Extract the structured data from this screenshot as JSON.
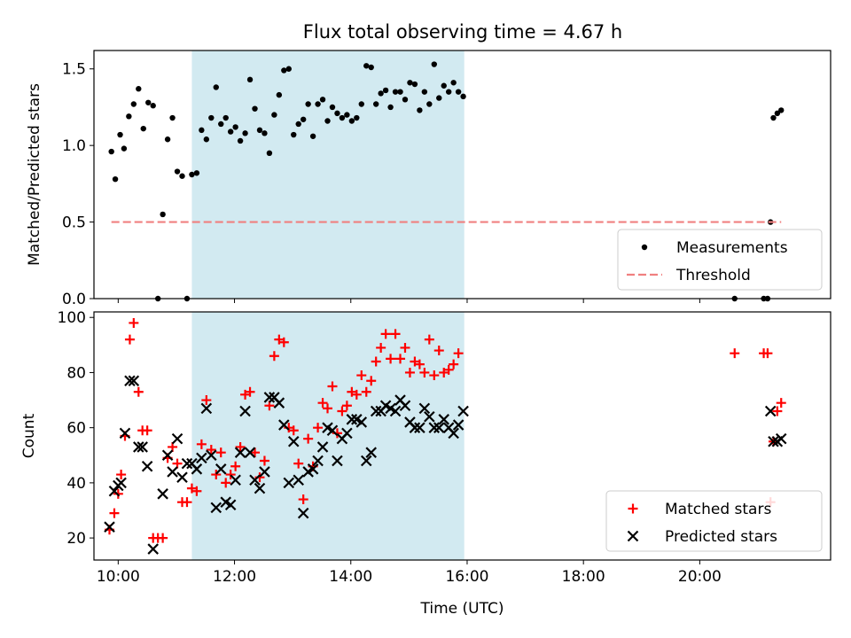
{
  "chart_data": [
    {
      "type": "scatter",
      "title": "Flux total observing time = 4.67 h",
      "ylabel": "Matched/Predicted stars",
      "xlabel": "",
      "xlim": [
        "09:35",
        "22:15"
      ],
      "ylim": [
        0,
        1.62
      ],
      "yticks": [
        "0.0",
        "0.5",
        "1.0",
        "1.5"
      ],
      "legend": "lower-right",
      "shaded_interval": [
        "11:16",
        "15:57"
      ],
      "shade_color": "#add8e6",
      "series": [
        {
          "name": "Measurements",
          "marker": "dot",
          "color": "#000000",
          "points": [
            [
              "09:53",
              0.96
            ],
            [
              "09:57",
              0.78
            ],
            [
              "10:02",
              1.07
            ],
            [
              "10:06",
              0.98
            ],
            [
              "10:11",
              1.19
            ],
            [
              "10:16",
              1.27
            ],
            [
              "10:21",
              1.37
            ],
            [
              "10:26",
              1.11
            ],
            [
              "10:31",
              1.28
            ],
            [
              "10:36",
              1.26
            ],
            [
              "10:41",
              0.0
            ],
            [
              "10:46",
              0.55
            ],
            [
              "10:51",
              1.04
            ],
            [
              "10:56",
              1.18
            ],
            [
              "11:01",
              0.83
            ],
            [
              "11:06",
              0.8
            ],
            [
              "11:11",
              0.0
            ],
            [
              "11:16",
              0.81
            ],
            [
              "11:21",
              0.82
            ],
            [
              "11:26",
              1.1
            ],
            [
              "11:31",
              1.04
            ],
            [
              "11:36",
              1.18
            ],
            [
              "11:41",
              1.38
            ],
            [
              "11:46",
              1.14
            ],
            [
              "11:51",
              1.18
            ],
            [
              "11:56",
              1.09
            ],
            [
              "12:01",
              1.12
            ],
            [
              "12:06",
              1.03
            ],
            [
              "12:11",
              1.08
            ],
            [
              "12:16",
              1.43
            ],
            [
              "12:21",
              1.24
            ],
            [
              "12:26",
              1.1
            ],
            [
              "12:31",
              1.08
            ],
            [
              "12:36",
              0.95
            ],
            [
              "12:41",
              1.2
            ],
            [
              "12:46",
              1.33
            ],
            [
              "12:51",
              1.49
            ],
            [
              "12:56",
              1.5
            ],
            [
              "13:01",
              1.07
            ],
            [
              "13:06",
              1.14
            ],
            [
              "13:11",
              1.17
            ],
            [
              "13:16",
              1.27
            ],
            [
              "13:21",
              1.06
            ],
            [
              "13:26",
              1.27
            ],
            [
              "13:31",
              1.3
            ],
            [
              "13:36",
              1.16
            ],
            [
              "13:41",
              1.25
            ],
            [
              "13:46",
              1.21
            ],
            [
              "13:51",
              1.18
            ],
            [
              "13:56",
              1.2
            ],
            [
              "14:01",
              1.16
            ],
            [
              "14:06",
              1.18
            ],
            [
              "14:11",
              1.27
            ],
            [
              "14:16",
              1.52
            ],
            [
              "14:21",
              1.51
            ],
            [
              "14:26",
              1.27
            ],
            [
              "14:31",
              1.34
            ],
            [
              "14:36",
              1.36
            ],
            [
              "14:41",
              1.25
            ],
            [
              "14:46",
              1.35
            ],
            [
              "14:51",
              1.35
            ],
            [
              "14:56",
              1.3
            ],
            [
              "15:01",
              1.41
            ],
            [
              "15:06",
              1.4
            ],
            [
              "15:11",
              1.23
            ],
            [
              "15:16",
              1.35
            ],
            [
              "15:21",
              1.27
            ],
            [
              "15:26",
              1.53
            ],
            [
              "15:31",
              1.31
            ],
            [
              "15:36",
              1.39
            ],
            [
              "15:41",
              1.35
            ],
            [
              "15:46",
              1.41
            ],
            [
              "15:51",
              1.35
            ],
            [
              "15:56",
              1.32
            ],
            [
              "20:36",
              0.0
            ],
            [
              "21:06",
              0.0
            ],
            [
              "21:10",
              0.0
            ],
            [
              "21:13",
              0.5
            ],
            [
              "21:16",
              1.18
            ],
            [
              "21:20",
              1.21
            ],
            [
              "21:24",
              1.23
            ]
          ]
        },
        {
          "name": "Threshold",
          "marker": "dashed-line",
          "color": "#f08080",
          "points": [
            [
              "09:53",
              0.5
            ],
            [
              "21:24",
              0.5
            ]
          ]
        }
      ]
    },
    {
      "type": "scatter",
      "title": "",
      "xlabel": "Time (UTC)",
      "ylabel": "Count",
      "xlim": [
        "09:35",
        "22:15"
      ],
      "ylim": [
        12,
        102
      ],
      "yticks": [
        "20",
        "40",
        "60",
        "80",
        "100"
      ],
      "xticks": [
        "10:00",
        "12:00",
        "14:00",
        "16:00",
        "18:00",
        "20:00"
      ],
      "legend": "lower-right",
      "shaded_interval": [
        "11:16",
        "15:57"
      ],
      "shade_color": "#add8e6",
      "series": [
        {
          "name": "Matched stars",
          "marker": "plus",
          "color": "#ff0000",
          "points": [
            [
              "09:51",
              23
            ],
            [
              "09:56",
              29
            ],
            [
              "10:00",
              36
            ],
            [
              "10:03",
              43
            ],
            [
              "10:07",
              57
            ],
            [
              "10:12",
              92
            ],
            [
              "10:16",
              98
            ],
            [
              "10:21",
              73
            ],
            [
              "10:25",
              59
            ],
            [
              "10:30",
              59
            ],
            [
              "10:36",
              20
            ],
            [
              "10:41",
              20
            ],
            [
              "10:46",
              20
            ],
            [
              "10:51",
              49
            ],
            [
              "10:56",
              53
            ],
            [
              "11:01",
              47
            ],
            [
              "11:06",
              33
            ],
            [
              "11:11",
              33
            ],
            [
              "11:16",
              38
            ],
            [
              "11:21",
              37
            ],
            [
              "11:26",
              54
            ],
            [
              "11:31",
              70
            ],
            [
              "11:36",
              52
            ],
            [
              "11:41",
              43
            ],
            [
              "11:46",
              51
            ],
            [
              "11:51",
              40
            ],
            [
              "11:56",
              43
            ],
            [
              "12:01",
              46
            ],
            [
              "12:06",
              53
            ],
            [
              "12:11",
              72
            ],
            [
              "12:16",
              73
            ],
            [
              "12:21",
              51
            ],
            [
              "12:26",
              42
            ],
            [
              "12:31",
              48
            ],
            [
              "12:36",
              68
            ],
            [
              "12:41",
              86
            ],
            [
              "12:46",
              92
            ],
            [
              "12:51",
              91
            ],
            [
              "12:56",
              60
            ],
            [
              "13:01",
              59
            ],
            [
              "13:06",
              47
            ],
            [
              "13:11",
              34
            ],
            [
              "13:16",
              56
            ],
            [
              "13:21",
              46
            ],
            [
              "13:26",
              60
            ],
            [
              "13:31",
              69
            ],
            [
              "13:36",
              67
            ],
            [
              "13:41",
              75
            ],
            [
              "13:46",
              58
            ],
            [
              "13:51",
              66
            ],
            [
              "13:56",
              68
            ],
            [
              "14:01",
              73
            ],
            [
              "14:06",
              72
            ],
            [
              "14:11",
              79
            ],
            [
              "14:16",
              73
            ],
            [
              "14:21",
              77
            ],
            [
              "14:26",
              84
            ],
            [
              "14:31",
              89
            ],
            [
              "14:36",
              94
            ],
            [
              "14:41",
              85
            ],
            [
              "14:46",
              94
            ],
            [
              "14:51",
              85
            ],
            [
              "14:56",
              89
            ],
            [
              "15:01",
              80
            ],
            [
              "15:06",
              84
            ],
            [
              "15:11",
              83
            ],
            [
              "15:16",
              80
            ],
            [
              "15:21",
              92
            ],
            [
              "15:26",
              79
            ],
            [
              "15:31",
              88
            ],
            [
              "15:36",
              80
            ],
            [
              "15:41",
              81
            ],
            [
              "15:46",
              83
            ],
            [
              "15:51",
              87
            ],
            [
              "20:36",
              87
            ],
            [
              "21:06",
              87
            ],
            [
              "21:10",
              87
            ],
            [
              "21:13",
              33
            ],
            [
              "21:16",
              55
            ],
            [
              "21:20",
              66
            ],
            [
              "21:24",
              69
            ]
          ]
        },
        {
          "name": "Predicted stars",
          "marker": "x",
          "color": "#000000",
          "points": [
            [
              "09:51",
              24
            ],
            [
              "09:56",
              37
            ],
            [
              "10:00",
              39
            ],
            [
              "10:03",
              40
            ],
            [
              "10:07",
              58
            ],
            [
              "10:12",
              77
            ],
            [
              "10:16",
              77
            ],
            [
              "10:21",
              53
            ],
            [
              "10:25",
              53
            ],
            [
              "10:30",
              46
            ],
            [
              "10:36",
              16
            ],
            [
              "10:46",
              36
            ],
            [
              "10:51",
              50
            ],
            [
              "10:56",
              44
            ],
            [
              "11:01",
              56
            ],
            [
              "11:06",
              42
            ],
            [
              "11:11",
              47
            ],
            [
              "11:16",
              47
            ],
            [
              "11:21",
              45
            ],
            [
              "11:26",
              49
            ],
            [
              "11:31",
              67
            ],
            [
              "11:36",
              50
            ],
            [
              "11:41",
              31
            ],
            [
              "11:46",
              45
            ],
            [
              "11:51",
              33
            ],
            [
              "11:56",
              32
            ],
            [
              "12:01",
              41
            ],
            [
              "12:06",
              51
            ],
            [
              "12:11",
              66
            ],
            [
              "12:16",
              51
            ],
            [
              "12:21",
              41
            ],
            [
              "12:26",
              38
            ],
            [
              "12:31",
              44
            ],
            [
              "12:36",
              71
            ],
            [
              "12:41",
              71
            ],
            [
              "12:46",
              69
            ],
            [
              "12:51",
              61
            ],
            [
              "12:56",
              40
            ],
            [
              "13:01",
              55
            ],
            [
              "13:06",
              41
            ],
            [
              "13:11",
              29
            ],
            [
              "13:16",
              44
            ],
            [
              "13:21",
              45
            ],
            [
              "13:26",
              48
            ],
            [
              "13:31",
              53
            ],
            [
              "13:36",
              60
            ],
            [
              "13:41",
              59
            ],
            [
              "13:46",
              48
            ],
            [
              "13:51",
              56
            ],
            [
              "13:56",
              58
            ],
            [
              "14:01",
              63
            ],
            [
              "14:06",
              63
            ],
            [
              "14:11",
              62
            ],
            [
              "14:16",
              48
            ],
            [
              "14:21",
              51
            ],
            [
              "14:26",
              66
            ],
            [
              "14:31",
              66
            ],
            [
              "14:36",
              68
            ],
            [
              "14:41",
              67
            ],
            [
              "14:46",
              66
            ],
            [
              "14:51",
              70
            ],
            [
              "14:56",
              68
            ],
            [
              "15:01",
              62
            ],
            [
              "15:06",
              60
            ],
            [
              "15:11",
              60
            ],
            [
              "15:16",
              67
            ],
            [
              "15:21",
              64
            ],
            [
              "15:26",
              60
            ],
            [
              "15:31",
              60
            ],
            [
              "15:36",
              63
            ],
            [
              "15:41",
              60
            ],
            [
              "15:46",
              58
            ],
            [
              "15:51",
              61
            ],
            [
              "15:56",
              66
            ],
            [
              "21:13",
              66
            ],
            [
              "21:16",
              55
            ],
            [
              "21:20",
              55
            ],
            [
              "21:24",
              56
            ]
          ]
        }
      ]
    }
  ]
}
